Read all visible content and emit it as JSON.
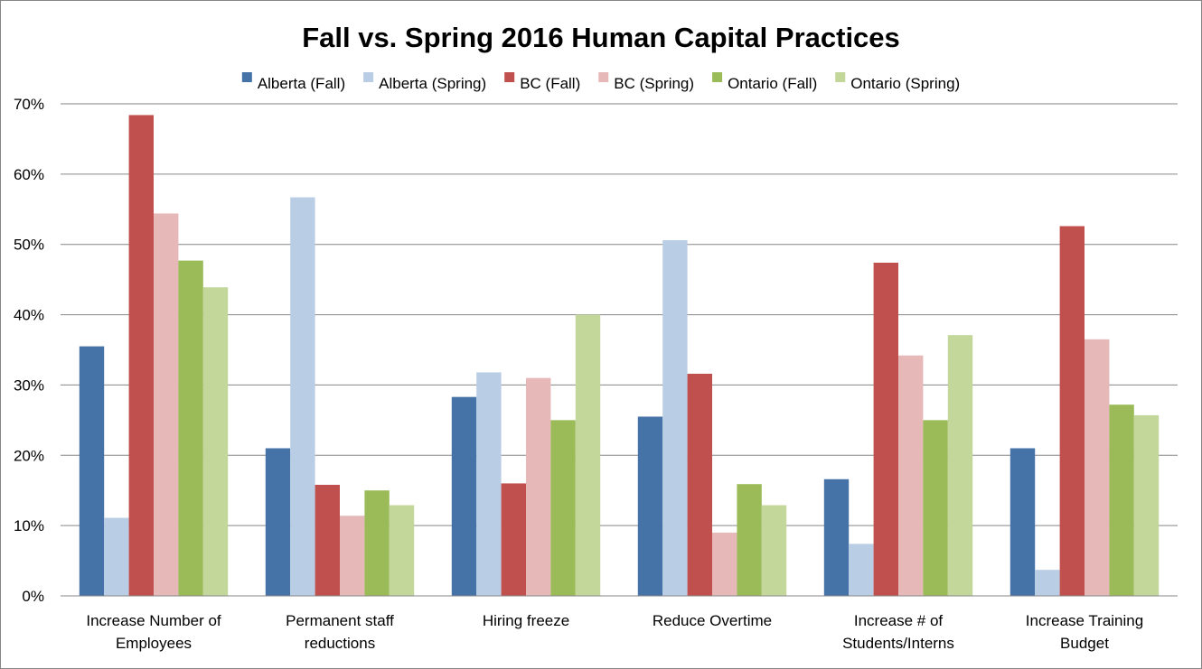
{
  "chart_data": {
    "type": "bar",
    "title": "Fall vs. Spring 2016 Human Capital Practices",
    "categories": [
      [
        "Increase Number of",
        "Employees"
      ],
      [
        "Permanent staff",
        "reductions"
      ],
      [
        "Hiring freeze"
      ],
      [
        "Reduce Overtime"
      ],
      [
        "Increase # of",
        "Students/Interns"
      ],
      [
        "Increase Training",
        "Budget"
      ]
    ],
    "series": [
      {
        "name": "Alberta (Fall)",
        "color": "#4572A7",
        "values": [
          35.5,
          21.0,
          28.3,
          25.5,
          16.6,
          21.0
        ]
      },
      {
        "name": "Alberta (Spring)",
        "color": "#B9CDE5",
        "values": [
          11.1,
          56.7,
          31.8,
          50.6,
          7.4,
          3.7
        ]
      },
      {
        "name": "BC (Fall)",
        "color": "#C0504D",
        "values": [
          68.4,
          15.8,
          16.0,
          31.6,
          47.4,
          52.6
        ]
      },
      {
        "name": "BC (Spring)",
        "color": "#E6B9B8",
        "values": [
          54.4,
          11.4,
          31.0,
          9.0,
          34.2,
          36.5
        ]
      },
      {
        "name": "Ontario (Fall)",
        "color": "#9BBB59",
        "values": [
          47.7,
          15.0,
          25.0,
          15.9,
          25.0,
          27.2
        ]
      },
      {
        "name": "Ontario (Spring)",
        "color": "#C4D79B",
        "values": [
          43.9,
          12.9,
          40.0,
          12.9,
          37.1,
          25.7
        ]
      }
    ],
    "yticks": [
      "0%",
      "10%",
      "20%",
      "30%",
      "40%",
      "50%",
      "60%",
      "70%"
    ],
    "ylim": [
      0,
      70
    ],
    "grid": true,
    "legend": "top",
    "xlabel": "",
    "ylabel": ""
  }
}
